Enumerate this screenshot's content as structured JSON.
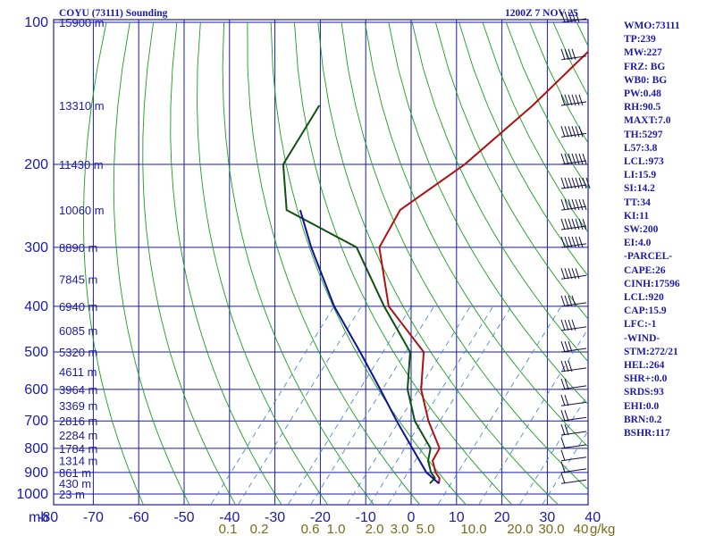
{
  "chart_data": {
    "type": "line",
    "title": "COYU (73111) Sounding",
    "time_label": "1200Z  7 NOV 25",
    "pressure_unit": "mb",
    "pressure_levels": [
      100,
      200,
      300,
      400,
      500,
      600,
      700,
      800,
      900,
      1000
    ],
    "temperature_ticks": [
      -80,
      -70,
      -60,
      -50,
      -40,
      -30,
      -20,
      -10,
      0,
      10,
      20,
      30,
      40
    ],
    "temperature_tick_labels": [
      "-80",
      "-70",
      "-60",
      "-50",
      "-40",
      "-30",
      "-20",
      "-10",
      "0",
      "10",
      "20",
      "30",
      "40"
    ],
    "mixing_ratio_unit": "g/kg",
    "mixing_ratio_labels": [
      "0.1",
      "0.2",
      "0.6",
      "1.0",
      "2.0",
      "3.0",
      "5.0",
      "10.0",
      "20.0",
      "30.0",
      "40"
    ],
    "height_labels": [
      {
        "p": 100,
        "label": "15900 m"
      },
      {
        "p": 150,
        "label": "13310 m"
      },
      {
        "p": 200,
        "label": "11430 m"
      },
      {
        "p": 250,
        "label": "10060 m"
      },
      {
        "p": 300,
        "label": "8890 m"
      },
      {
        "p": 350,
        "label": "7845 m"
      },
      {
        "p": 400,
        "label": "6940 m"
      },
      {
        "p": 450,
        "label": "6085 m"
      },
      {
        "p": 500,
        "label": "5320 m"
      },
      {
        "p": 550,
        "label": "4611 m"
      },
      {
        "p": 600,
        "label": "3964 m"
      },
      {
        "p": 650,
        "label": "3369 m"
      },
      {
        "p": 700,
        "label": "2816 m"
      },
      {
        "p": 750,
        "label": "2284 m"
      },
      {
        "p": 800,
        "label": "1784 m"
      },
      {
        "p": 850,
        "label": "1314 m"
      },
      {
        "p": 900,
        "label": "861 m"
      },
      {
        "p": 950,
        "label": "430 m"
      },
      {
        "p": 1000,
        "label": "23 m"
      }
    ],
    "series": [
      {
        "name": "Temperature",
        "color": "#b01010",
        "p": [
          100,
          150,
          200,
          250,
          300,
          400,
          500,
          600,
          700,
          800,
          850,
          900,
          925,
          950
        ],
        "t": [
          -50,
          -52,
          -55,
          -60,
          -57,
          -43,
          -26,
          -19,
          -11,
          -3,
          -2,
          1,
          3,
          4
        ]
      },
      {
        "name": "Dewpoint",
        "color": "#105010",
        "p": [
          150,
          200,
          250,
          300,
          400,
          500,
          600,
          700,
          800,
          850,
          900,
          925,
          950
        ],
        "t": [
          -99,
          -95,
          -85,
          -62,
          -44,
          -29,
          -22,
          -14,
          -5,
          -3,
          0,
          2,
          2
        ]
      },
      {
        "name": "Parcel",
        "color": "#1010a0",
        "p": [
          250,
          300,
          400,
          500,
          600,
          700,
          800,
          900,
          950
        ],
        "t": [
          -82,
          -72,
          -55,
          -40,
          -28,
          -18,
          -9,
          -1,
          4
        ]
      }
    ],
    "wind_barbs": [
      {
        "p": 100,
        "speed_kt": 45
      },
      {
        "p": 120,
        "speed_kt": 40
      },
      {
        "p": 150,
        "speed_kt": 55
      },
      {
        "p": 175,
        "speed_kt": 60
      },
      {
        "p": 200,
        "speed_kt": 70
      },
      {
        "p": 225,
        "speed_kt": 75
      },
      {
        "p": 250,
        "speed_kt": 70
      },
      {
        "p": 275,
        "speed_kt": 65
      },
      {
        "p": 300,
        "speed_kt": 60
      },
      {
        "p": 350,
        "speed_kt": 45
      },
      {
        "p": 400,
        "speed_kt": 40
      },
      {
        "p": 450,
        "speed_kt": 40
      },
      {
        "p": 500,
        "speed_kt": 30
      },
      {
        "p": 550,
        "speed_kt": 25
      },
      {
        "p": 600,
        "speed_kt": 20
      },
      {
        "p": 650,
        "speed_kt": 15
      },
      {
        "p": 700,
        "speed_kt": 15
      },
      {
        "p": 750,
        "speed_kt": 15
      },
      {
        "p": 800,
        "speed_kt": 10
      },
      {
        "p": 850,
        "speed_kt": 10
      },
      {
        "p": 900,
        "speed_kt": 10
      },
      {
        "p": 950,
        "speed_kt": 5
      }
    ],
    "colors": {
      "grid": "#1a1aa8",
      "dry_adiabat": "#18a018",
      "moist_adiabat": "#303030",
      "mixing_ratio": "#4a88d0",
      "text": "#1a1aa8",
      "mixing_text": "#7a6a18"
    }
  },
  "indices": [
    "WMO:73111",
    "TP:239",
    "MW:227",
    "FRZ: BG",
    "WB0: BG",
    "PW:0.48",
    "RH:90.5",
    "MAXT:7.0",
    "TH:5297",
    "L57:3.8",
    "LCL:973",
    "LI:15.9",
    "SI:14.2",
    "TT:34",
    "KI:11",
    "SW:200",
    "EI:4.0",
    "-PARCEL-",
    "CAPE:26",
    "CINH:17596",
    "LCL:920",
    "CAP:15.9",
    "LFC:-1",
    "-WIND-",
    "STM:272/21",
    "HEL:264",
    "SHR+:0.0",
    "SRDS:93",
    "EHI:0.0",
    "BRN:0.2",
    "BSHR:117"
  ]
}
